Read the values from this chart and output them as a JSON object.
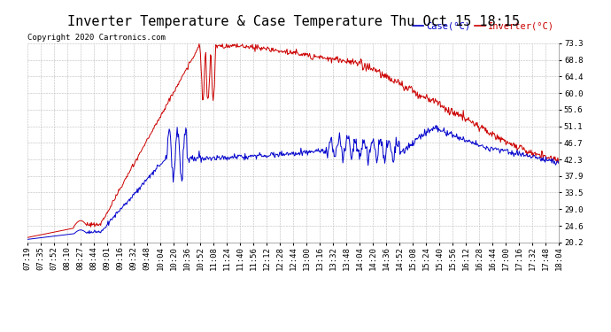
{
  "title": "Inverter Temperature & Case Temperature Thu Oct 15 18:15",
  "copyright": "Copyright 2020 Cartronics.com",
  "legend_case": "Case(°C)",
  "legend_inverter": "Inverter(°C)",
  "ylabel_right_ticks": [
    20.2,
    24.6,
    29.0,
    33.5,
    37.9,
    42.3,
    46.7,
    51.1,
    55.6,
    60.0,
    64.4,
    68.8,
    73.3
  ],
  "ylim": [
    20.2,
    73.3
  ],
  "bg_color": "#ffffff",
  "grid_color": "#bbbbbb",
  "inverter_color": "#cc0000",
  "case_color": "#0000cc",
  "title_fontsize": 11,
  "tick_fontsize": 6.5,
  "copyright_fontsize": 6.5,
  "legend_fontsize": 7.5,
  "xtick_labels": [
    "07:19",
    "07:35",
    "07:52",
    "08:10",
    "08:27",
    "08:44",
    "09:01",
    "09:16",
    "09:32",
    "09:48",
    "10:04",
    "10:20",
    "10:36",
    "10:52",
    "11:08",
    "11:24",
    "11:40",
    "11:56",
    "12:12",
    "12:28",
    "12:44",
    "13:00",
    "13:16",
    "13:32",
    "13:48",
    "14:04",
    "14:20",
    "14:36",
    "14:52",
    "15:08",
    "15:24",
    "15:40",
    "15:56",
    "16:12",
    "16:28",
    "16:44",
    "17:00",
    "17:16",
    "17:32",
    "17:48",
    "18:04"
  ],
  "n_points": 800
}
